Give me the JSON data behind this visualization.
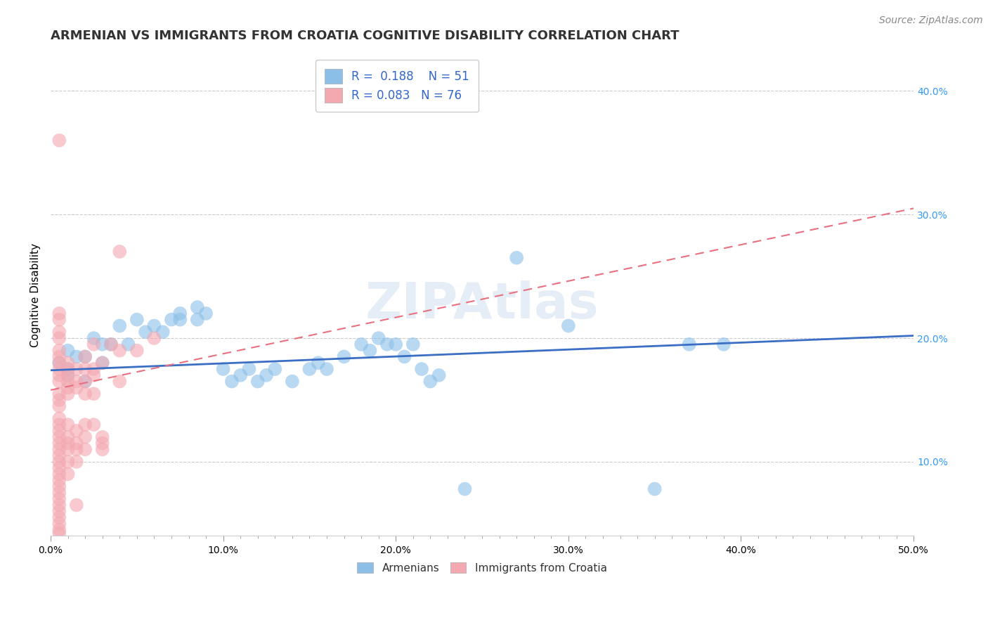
{
  "title": "ARMENIAN VS IMMIGRANTS FROM CROATIA COGNITIVE DISABILITY CORRELATION CHART",
  "source": "Source: ZipAtlas.com",
  "ylabel": "Cognitive Disability",
  "xlim": [
    0.0,
    0.5
  ],
  "ylim": [
    0.04,
    0.43
  ],
  "xtick_labels": [
    "0.0%",
    "",
    "",
    "",
    "",
    "",
    "",
    "",
    "",
    "",
    "10.0%",
    "",
    "",
    "",
    "",
    "",
    "",
    "",
    "",
    "",
    "20.0%",
    "",
    "",
    "",
    "",
    "",
    "",
    "",
    "",
    "",
    "30.0%",
    "",
    "",
    "",
    "",
    "",
    "",
    "",
    "",
    "",
    "40.0%",
    "",
    "",
    "",
    "",
    "",
    "",
    "",
    "",
    "",
    "50.0%"
  ],
  "xtick_vals": [
    0.0,
    0.01,
    0.02,
    0.03,
    0.04,
    0.05,
    0.06,
    0.07,
    0.08,
    0.09,
    0.1,
    0.11,
    0.12,
    0.13,
    0.14,
    0.15,
    0.16,
    0.17,
    0.18,
    0.19,
    0.2,
    0.21,
    0.22,
    0.23,
    0.24,
    0.25,
    0.26,
    0.27,
    0.28,
    0.29,
    0.3,
    0.31,
    0.32,
    0.33,
    0.34,
    0.35,
    0.36,
    0.37,
    0.38,
    0.39,
    0.4,
    0.41,
    0.42,
    0.43,
    0.44,
    0.45,
    0.46,
    0.47,
    0.48,
    0.49,
    0.5
  ],
  "major_xtick_vals": [
    0.0,
    0.1,
    0.2,
    0.3,
    0.4,
    0.5
  ],
  "major_xtick_labels": [
    "0.0%",
    "10.0%",
    "20.0%",
    "30.0%",
    "40.0%",
    "50.0%"
  ],
  "ytick_labels": [
    "10.0%",
    "20.0%",
    "30.0%",
    "40.0%"
  ],
  "ytick_vals": [
    0.1,
    0.2,
    0.3,
    0.4
  ],
  "legend_blue_r": "0.188",
  "legend_blue_n": "51",
  "legend_pink_r": "0.083",
  "legend_pink_n": "76",
  "blue_color": "#8bbfe8",
  "pink_color": "#f4a8b0",
  "blue_scatter": [
    [
      0.02,
      0.165
    ],
    [
      0.01,
      0.175
    ],
    [
      0.01,
      0.17
    ],
    [
      0.015,
      0.185
    ],
    [
      0.005,
      0.18
    ],
    [
      0.01,
      0.19
    ],
    [
      0.02,
      0.185
    ],
    [
      0.03,
      0.18
    ],
    [
      0.03,
      0.195
    ],
    [
      0.025,
      0.2
    ],
    [
      0.035,
      0.195
    ],
    [
      0.04,
      0.21
    ],
    [
      0.045,
      0.195
    ],
    [
      0.05,
      0.215
    ],
    [
      0.055,
      0.205
    ],
    [
      0.06,
      0.21
    ],
    [
      0.065,
      0.205
    ],
    [
      0.07,
      0.215
    ],
    [
      0.075,
      0.215
    ],
    [
      0.075,
      0.22
    ],
    [
      0.085,
      0.215
    ],
    [
      0.085,
      0.225
    ],
    [
      0.09,
      0.22
    ],
    [
      0.1,
      0.175
    ],
    [
      0.105,
      0.165
    ],
    [
      0.11,
      0.17
    ],
    [
      0.115,
      0.175
    ],
    [
      0.12,
      0.165
    ],
    [
      0.125,
      0.17
    ],
    [
      0.13,
      0.175
    ],
    [
      0.14,
      0.165
    ],
    [
      0.15,
      0.175
    ],
    [
      0.155,
      0.18
    ],
    [
      0.16,
      0.175
    ],
    [
      0.17,
      0.185
    ],
    [
      0.18,
      0.195
    ],
    [
      0.185,
      0.19
    ],
    [
      0.19,
      0.2
    ],
    [
      0.195,
      0.195
    ],
    [
      0.2,
      0.195
    ],
    [
      0.205,
      0.185
    ],
    [
      0.21,
      0.195
    ],
    [
      0.215,
      0.175
    ],
    [
      0.22,
      0.165
    ],
    [
      0.225,
      0.17
    ],
    [
      0.27,
      0.265
    ],
    [
      0.3,
      0.21
    ],
    [
      0.37,
      0.195
    ],
    [
      0.39,
      0.195
    ],
    [
      0.24,
      0.078
    ],
    [
      0.35,
      0.078
    ]
  ],
  "pink_scatter": [
    [
      0.005,
      0.175
    ],
    [
      0.005,
      0.18
    ],
    [
      0.005,
      0.185
    ],
    [
      0.005,
      0.19
    ],
    [
      0.005,
      0.2
    ],
    [
      0.005,
      0.165
    ],
    [
      0.005,
      0.17
    ],
    [
      0.005,
      0.205
    ],
    [
      0.005,
      0.155
    ],
    [
      0.005,
      0.15
    ],
    [
      0.005,
      0.145
    ],
    [
      0.005,
      0.135
    ],
    [
      0.005,
      0.13
    ],
    [
      0.005,
      0.125
    ],
    [
      0.005,
      0.12
    ],
    [
      0.005,
      0.115
    ],
    [
      0.005,
      0.11
    ],
    [
      0.005,
      0.105
    ],
    [
      0.005,
      0.1
    ],
    [
      0.005,
      0.095
    ],
    [
      0.005,
      0.09
    ],
    [
      0.005,
      0.085
    ],
    [
      0.005,
      0.08
    ],
    [
      0.005,
      0.075
    ],
    [
      0.005,
      0.07
    ],
    [
      0.005,
      0.065
    ],
    [
      0.01,
      0.18
    ],
    [
      0.01,
      0.175
    ],
    [
      0.01,
      0.17
    ],
    [
      0.01,
      0.16
    ],
    [
      0.01,
      0.155
    ],
    [
      0.01,
      0.165
    ],
    [
      0.01,
      0.13
    ],
    [
      0.01,
      0.12
    ],
    [
      0.01,
      0.115
    ],
    [
      0.01,
      0.11
    ],
    [
      0.01,
      0.1
    ],
    [
      0.01,
      0.09
    ],
    [
      0.015,
      0.175
    ],
    [
      0.015,
      0.165
    ],
    [
      0.015,
      0.16
    ],
    [
      0.015,
      0.125
    ],
    [
      0.015,
      0.115
    ],
    [
      0.015,
      0.11
    ],
    [
      0.015,
      0.065
    ],
    [
      0.02,
      0.175
    ],
    [
      0.02,
      0.185
    ],
    [
      0.02,
      0.165
    ],
    [
      0.02,
      0.155
    ],
    [
      0.02,
      0.13
    ],
    [
      0.02,
      0.12
    ],
    [
      0.025,
      0.175
    ],
    [
      0.025,
      0.17
    ],
    [
      0.025,
      0.155
    ],
    [
      0.03,
      0.18
    ],
    [
      0.03,
      0.12
    ],
    [
      0.03,
      0.115
    ],
    [
      0.04,
      0.27
    ],
    [
      0.04,
      0.165
    ],
    [
      0.005,
      0.36
    ],
    [
      0.005,
      0.215
    ],
    [
      0.005,
      0.22
    ],
    [
      0.025,
      0.195
    ],
    [
      0.035,
      0.195
    ],
    [
      0.04,
      0.19
    ],
    [
      0.05,
      0.19
    ],
    [
      0.06,
      0.2
    ],
    [
      0.005,
      0.055
    ],
    [
      0.005,
      0.06
    ],
    [
      0.005,
      0.05
    ],
    [
      0.005,
      0.045
    ],
    [
      0.005,
      0.042
    ],
    [
      0.03,
      0.11
    ],
    [
      0.02,
      0.11
    ],
    [
      0.015,
      0.1
    ],
    [
      0.025,
      0.13
    ]
  ],
  "blue_line_x": [
    0.0,
    0.5
  ],
  "blue_line_y": [
    0.174,
    0.202
  ],
  "pink_line_x": [
    0.0,
    0.5
  ],
  "pink_line_y": [
    0.158,
    0.305
  ],
  "watermark": "ZIPAtlas",
  "title_fontsize": 13,
  "axis_label_fontsize": 11,
  "tick_fontsize": 10,
  "legend_fontsize": 12,
  "source_fontsize": 10
}
